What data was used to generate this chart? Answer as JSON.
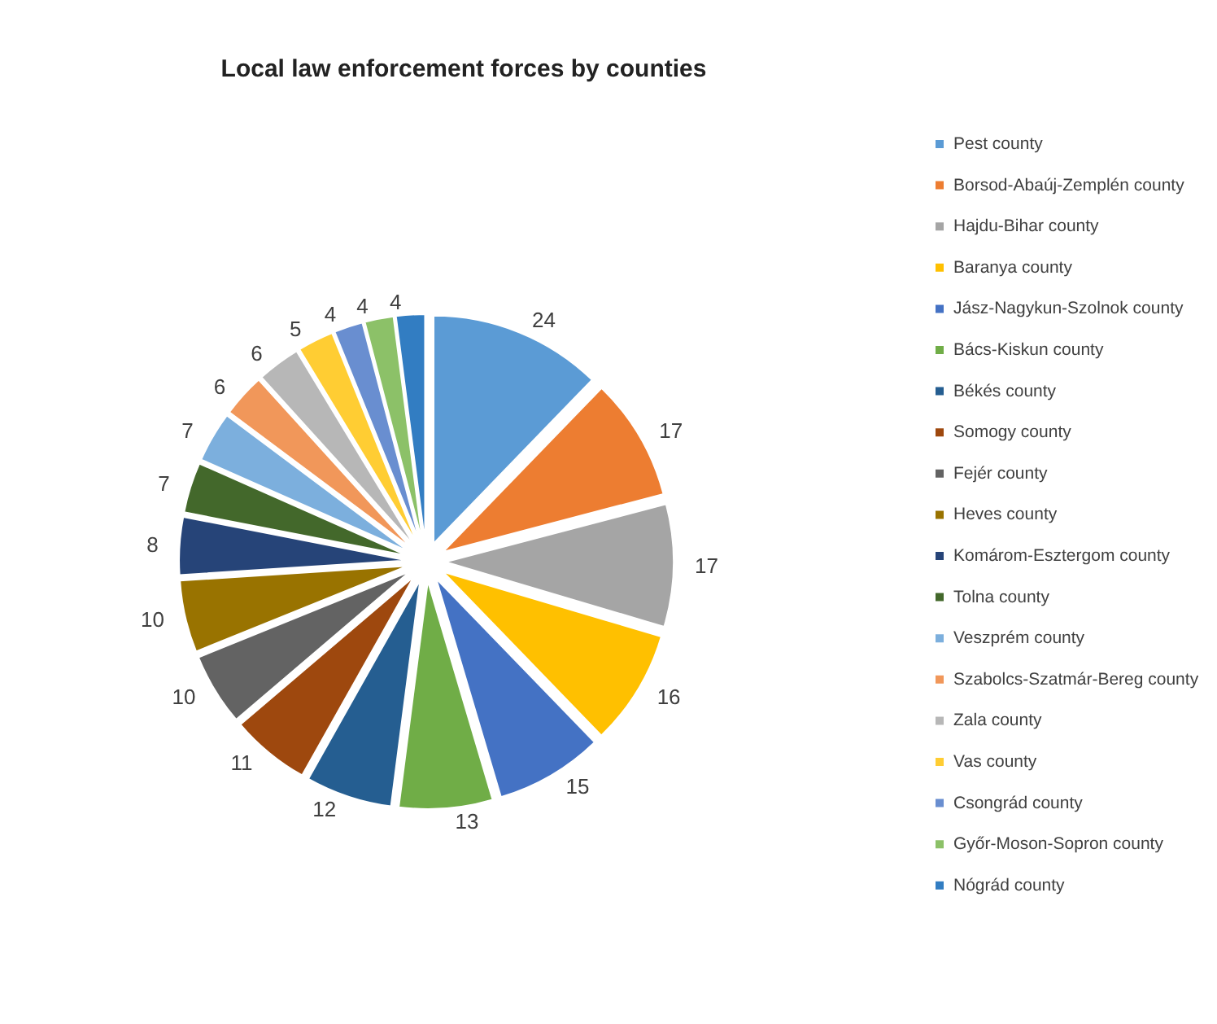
{
  "chart_data": {
    "type": "pie",
    "title": "Local law enforcement forces by counties",
    "categories": [
      "Pest county",
      "Borsod-Abaúj-Zemplén county",
      "Hajdu-Bihar county",
      "Baranya county",
      "Jász-Nagykun-Szolnok county",
      "Bács-Kiskun county",
      "Békés county",
      "Somogy county",
      "Fejér county",
      "Heves county",
      "Komárom-Esztergom county",
      "Tolna county",
      "Veszprém county",
      "Szabolcs-Szatmár-Bereg county",
      "Zala county",
      "Vas county",
      "Csongrád county",
      "Győr-Moson-Sopron county",
      "Nógrád county"
    ],
    "values": [
      24,
      17,
      17,
      16,
      15,
      13,
      12,
      11,
      10,
      10,
      8,
      7,
      7,
      6,
      6,
      5,
      4,
      4,
      4
    ],
    "colors": [
      "#5b9bd5",
      "#ed7d31",
      "#a5a5a5",
      "#ffc000",
      "#4472c4",
      "#70ad47",
      "#255e91",
      "#9e480e",
      "#636363",
      "#997300",
      "#264478",
      "#43682b",
      "#7cafdd",
      "#f1975a",
      "#b7b7b7",
      "#ffcd33",
      "#698ed0",
      "#8cc168",
      "#327dc2"
    ],
    "data_labels": true,
    "legend": "right"
  }
}
